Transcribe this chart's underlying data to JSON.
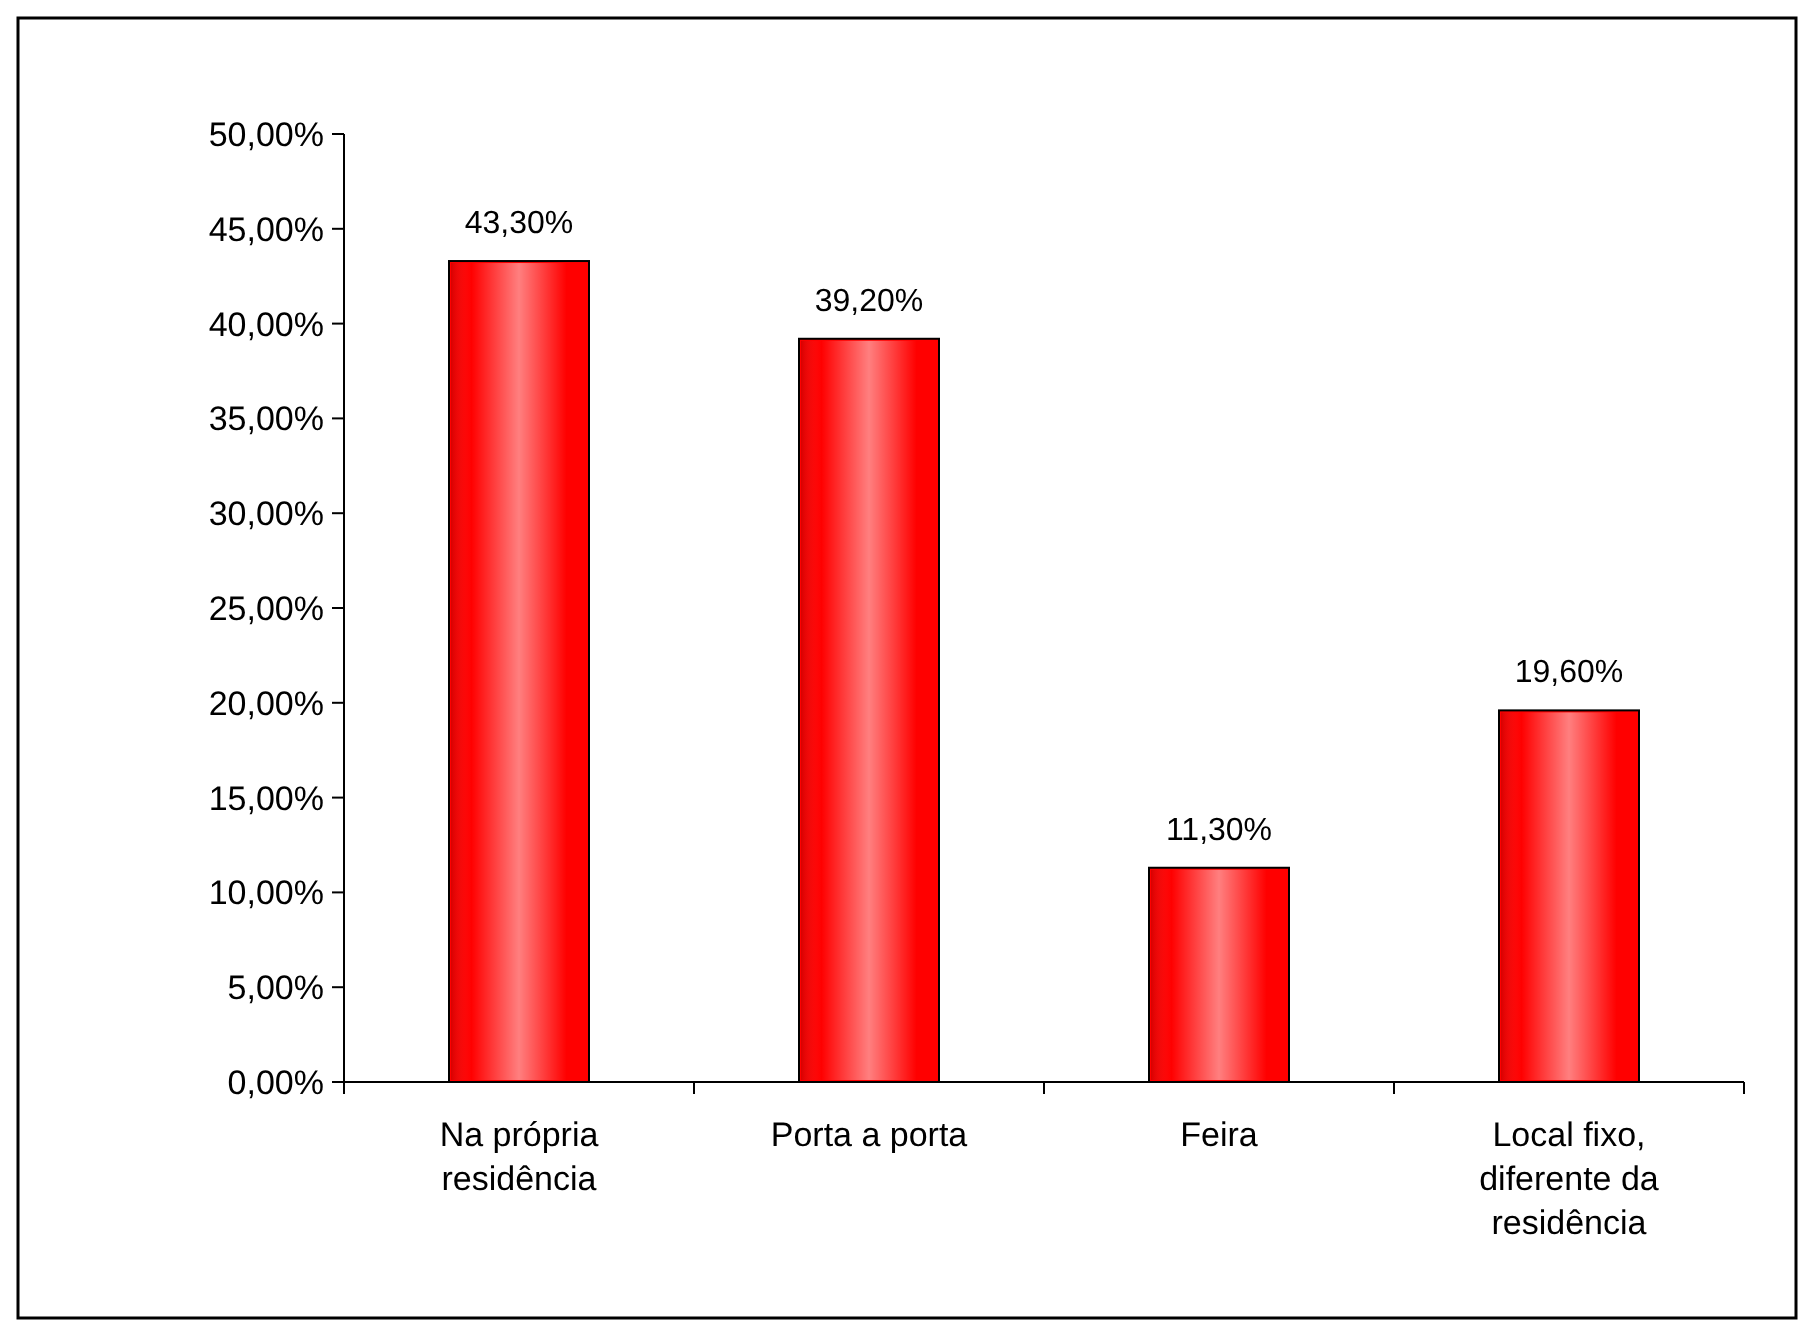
{
  "chart_data": {
    "type": "bar",
    "categories": [
      "Na própria residência",
      "Porta a porta",
      "Feira",
      "Local fixo, diferente da residência"
    ],
    "values": [
      43.3,
      39.2,
      11.3,
      19.6
    ],
    "color": "#ff0000",
    "value_labels": [
      "43,30%",
      "39,20%",
      "11,30%",
      "19,60%"
    ],
    "ylim": [
      0,
      50
    ],
    "yticks": [
      {
        "value": 0,
        "label": "0,00%"
      },
      {
        "value": 5,
        "label": "5,00%"
      },
      {
        "value": 10,
        "label": "10,00%"
      },
      {
        "value": 15,
        "label": "15,00%"
      },
      {
        "value": 20,
        "label": "20,00%"
      },
      {
        "value": 25,
        "label": "25,00%"
      },
      {
        "value": 30,
        "label": "30,00%"
      },
      {
        "value": 35,
        "label": "35,00%"
      },
      {
        "value": 40,
        "label": "40,00%"
      },
      {
        "value": 45,
        "label": "45,00%"
      },
      {
        "value": 50,
        "label": "50,00%"
      }
    ],
    "grid": false
  }
}
